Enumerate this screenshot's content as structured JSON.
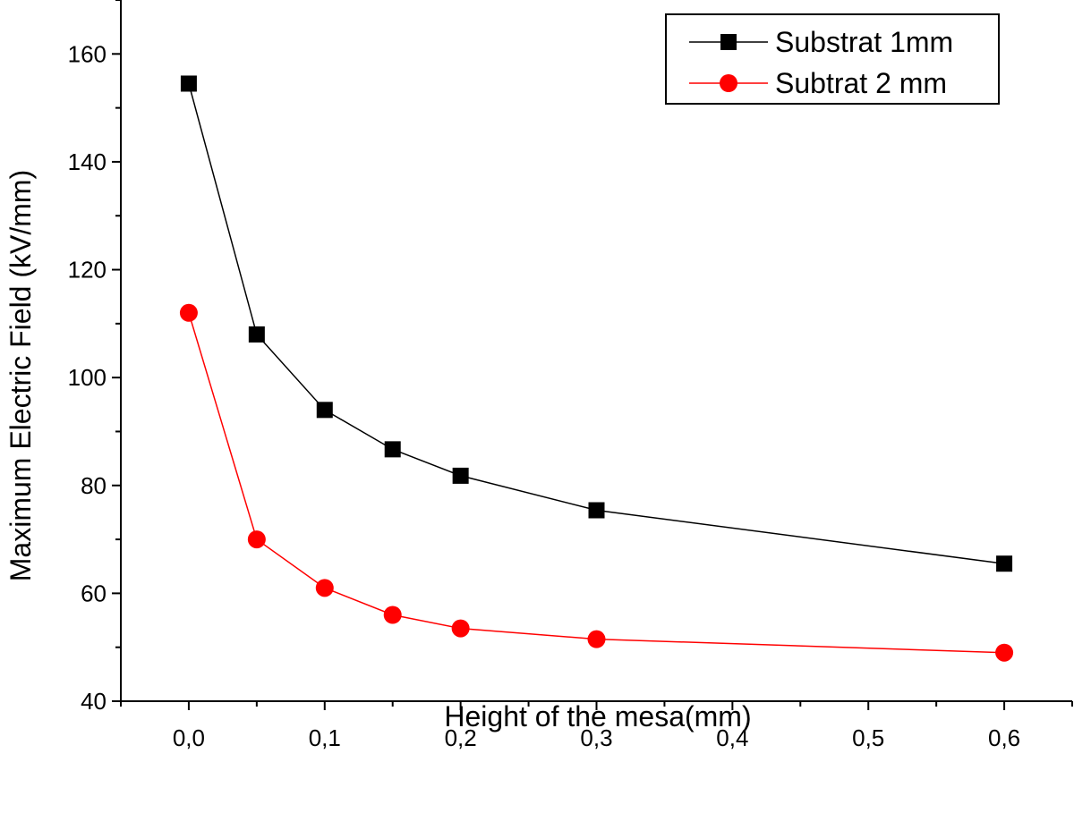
{
  "chart_data": {
    "type": "line",
    "title": "",
    "xlabel": "Height of the mesa(mm)",
    "ylabel": "Maximum Electric Field (kV/mm)",
    "xlim": [
      -0.05,
      0.65
    ],
    "ylim": [
      40,
      170
    ],
    "grid": false,
    "legend_position": "top-right",
    "x_ticks": [
      {
        "value": 0.0,
        "label": "0,0"
      },
      {
        "value": 0.1,
        "label": "0,1"
      },
      {
        "value": 0.2,
        "label": "0,2"
      },
      {
        "value": 0.3,
        "label": "0,3"
      },
      {
        "value": 0.4,
        "label": "0,4"
      },
      {
        "value": 0.5,
        "label": "0,5"
      },
      {
        "value": 0.6,
        "label": "0,6"
      }
    ],
    "y_ticks": [
      {
        "value": 40,
        "label": "40"
      },
      {
        "value": 60,
        "label": "60"
      },
      {
        "value": 80,
        "label": "80"
      },
      {
        "value": 100,
        "label": "100"
      },
      {
        "value": 120,
        "label": "120"
      },
      {
        "value": 140,
        "label": "140"
      },
      {
        "value": 160,
        "label": "160"
      }
    ],
    "x": [
      0.0,
      0.05,
      0.1,
      0.15,
      0.2,
      0.3,
      0.6
    ],
    "series": [
      {
        "name": "Substrat 1mm",
        "color": "#000000",
        "marker": "square",
        "values": [
          154.5,
          108,
          94,
          86.7,
          81.8,
          75.4,
          65.5
        ]
      },
      {
        "name": "Subtrat 2 mm",
        "color": "#ff0000",
        "marker": "circle",
        "values": [
          112,
          70,
          61,
          56,
          53.5,
          51.5,
          49
        ]
      }
    ]
  }
}
